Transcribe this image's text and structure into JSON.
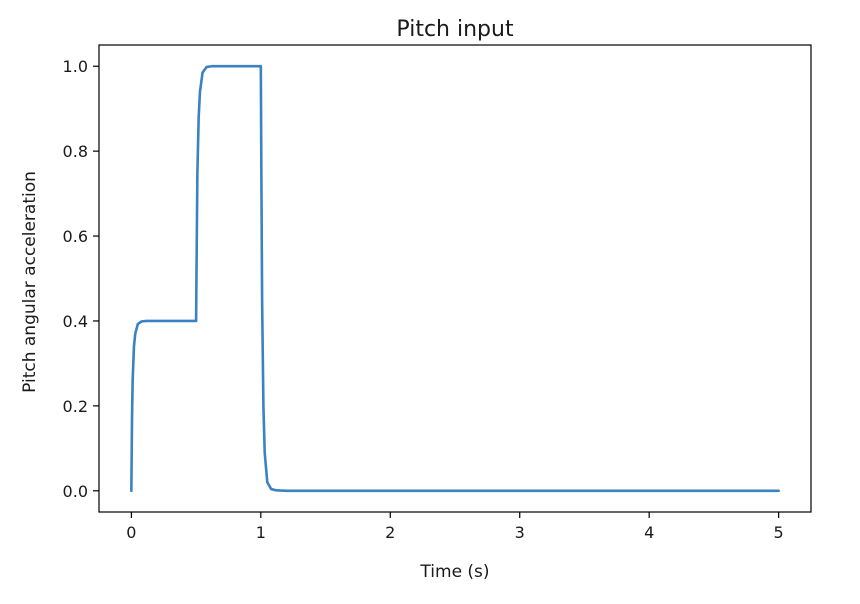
{
  "chart_data": {
    "type": "line",
    "title": "Pitch input",
    "xlabel": "Time (s)",
    "ylabel": "Pitch angular acceleration",
    "xlim": [
      -0.25,
      5.25
    ],
    "ylim": [
      -0.05,
      1.05
    ],
    "xticks": [
      0,
      1,
      2,
      3,
      4,
      5
    ],
    "xtick_labels": [
      "0",
      "1",
      "2",
      "3",
      "4",
      "5"
    ],
    "yticks": [
      0.0,
      0.2,
      0.4,
      0.6,
      0.8,
      1.0
    ],
    "ytick_labels": [
      "0.0",
      "0.2",
      "0.4",
      "0.6",
      "0.8",
      "1.0"
    ],
    "grid": false,
    "series": [
      {
        "color": "#3b82c4",
        "x": [
          0,
          0.005,
          0.01,
          0.02,
          0.03,
          0.05,
          0.08,
          0.12,
          0.2,
          0.3,
          0.4,
          0.5,
          0.505,
          0.51,
          0.52,
          0.53,
          0.55,
          0.58,
          0.62,
          0.7,
          0.8,
          0.9,
          1.0,
          1.005,
          1.01,
          1.02,
          1.03,
          1.05,
          1.08,
          1.12,
          1.2,
          1.5,
          2,
          2.5,
          3,
          3.5,
          4,
          4.5,
          5
        ],
        "y": [
          0.0,
          0.17,
          0.26,
          0.34,
          0.37,
          0.393,
          0.399,
          0.4,
          0.4,
          0.4,
          0.4,
          0.4,
          0.58,
          0.75,
          0.88,
          0.94,
          0.985,
          0.998,
          1.0,
          1.0,
          1.0,
          1.0,
          1.0,
          0.7,
          0.45,
          0.2,
          0.09,
          0.02,
          0.004,
          0.001,
          0.0,
          0.0,
          0.0,
          0.0,
          0.0,
          0.0,
          0.0,
          0.0,
          0.0
        ]
      }
    ]
  }
}
